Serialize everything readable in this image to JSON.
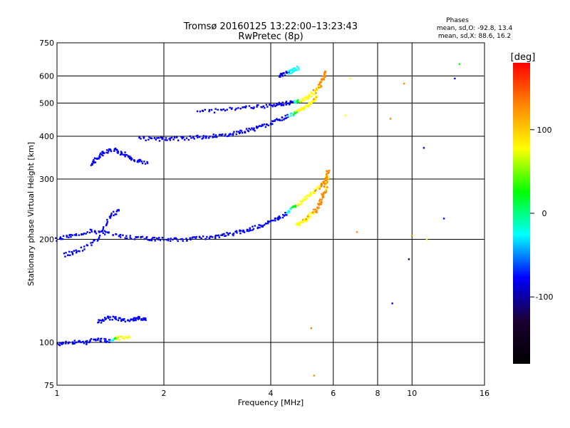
{
  "chart_data": {
    "type": "scatter",
    "title": "Tromsø 20160125 13:22:00–13:23:43",
    "subtitle": "RwPretec (8p)",
    "xlabel": "Frequency [MHz]",
    "ylabel": "Stationary phase Virtual Height [km]",
    "x_scale": "log",
    "y_scale": "log",
    "xlim": [
      1,
      16
    ],
    "ylim": [
      75,
      750
    ],
    "x_ticks": [
      1,
      2,
      4,
      6,
      8,
      10,
      16
    ],
    "y_ticks": [
      75,
      100,
      200,
      300,
      400,
      500,
      600,
      750
    ],
    "grid": true,
    "phase_info": {
      "title": "Phases",
      "line1": "mean, sd,O: -92.8, 13.4",
      "line2": "mean, sd,X:  88.6, 16.2"
    },
    "colorbar": {
      "label": "[deg]",
      "range": [
        -180,
        180
      ],
      "ticks": [
        100,
        0,
        -100
      ],
      "colors": [
        "#ff0000",
        "#ff8800",
        "#ffff00",
        "#00ff00",
        "#00ffff",
        "#0000ff",
        "#1a0033",
        "#000000"
      ]
    },
    "traces": [
      {
        "f": [
          1.0,
          1.1,
          1.25,
          1.4,
          1.6,
          1.8,
          2.0,
          2.3,
          2.6,
          2.9,
          3.2,
          3.5,
          3.8,
          4.1,
          4.4,
          4.7,
          5.0,
          5.3,
          5.6,
          5.8
        ],
        "h": [
          200,
          205,
          212,
          208,
          203,
          201,
          200,
          200,
          202,
          205,
          209,
          214,
          220,
          228,
          238,
          250,
          262,
          275,
          290,
          305
        ],
        "phase": [
          -95,
          -95,
          -92,
          -92,
          -90,
          -90,
          -92,
          -92,
          -95,
          -95,
          -95,
          -90,
          -85,
          -80,
          -60,
          40,
          95,
          100,
          110,
          100
        ]
      },
      {
        "f": [
          4.7,
          4.9,
          5.1,
          5.3,
          5.5,
          5.6,
          5.7,
          5.75,
          5.8
        ],
        "h": [
          220,
          225,
          232,
          240,
          252,
          265,
          280,
          300,
          320
        ],
        "phase": [
          95,
          100,
          100,
          105,
          110,
          110,
          100,
          105,
          110
        ]
      },
      {
        "f": [
          1.7,
          1.9,
          2.1,
          2.4,
          2.7,
          3.0,
          3.3,
          3.6,
          3.9,
          4.2,
          4.5,
          4.8,
          5.0,
          5.2,
          5.4
        ],
        "h": [
          395,
          392,
          392,
          396,
          400,
          405,
          412,
          420,
          432,
          445,
          460,
          475,
          488,
          500,
          520
        ],
        "phase": [
          -90,
          -92,
          -92,
          -90,
          -90,
          -92,
          -90,
          -88,
          -85,
          -80,
          -50,
          80,
          90,
          95,
          100
        ]
      },
      {
        "f": [
          2.5,
          3.0,
          3.5,
          4.0,
          4.3,
          4.6,
          4.9,
          5.1,
          5.3,
          5.5,
          5.6,
          5.7
        ],
        "h": [
          470,
          478,
          485,
          492,
          498,
          502,
          510,
          520,
          540,
          560,
          590,
          620
        ],
        "phase": [
          -92,
          -90,
          -90,
          -88,
          -85,
          -60,
          60,
          90,
          100,
          105,
          110,
          105
        ]
      },
      {
        "f": [
          1.25,
          1.3,
          1.35,
          1.45,
          1.55,
          1.65,
          1.8
        ],
        "h": [
          330,
          345,
          360,
          365,
          355,
          340,
          335
        ],
        "phase": [
          -90,
          -92,
          -92,
          -90,
          -88,
          -90,
          -90
        ]
      },
      {
        "f": [
          1.3,
          1.4,
          1.5,
          1.6,
          1.7,
          1.8
        ],
        "h": [
          115,
          118,
          117,
          116,
          118,
          116
        ],
        "phase": [
          -90,
          -92,
          -92,
          -90,
          -95,
          -90
        ]
      },
      {
        "f": [
          1.0,
          1.1,
          1.2,
          1.3,
          1.4,
          1.5,
          1.6
        ],
        "h": [
          99,
          100,
          100,
          102,
          101,
          103,
          104
        ],
        "phase": [
          -90,
          -92,
          -95,
          -90,
          -80,
          90,
          100
        ]
      },
      {
        "f": [
          1.05,
          1.15,
          1.3,
          1.4,
          1.5
        ],
        "h": [
          180,
          185,
          200,
          230,
          245
        ],
        "phase": [
          -90,
          -92,
          -90,
          -92,
          -90
        ]
      },
      {
        "f": [
          4.2,
          4.4,
          4.6,
          4.8
        ],
        "h": [
          600,
          610,
          620,
          635
        ],
        "phase": [
          -90,
          -70,
          -30,
          -10
        ]
      }
    ],
    "scatter_points": [
      {
        "f": 6.5,
        "h": 460,
        "phase": 80
      },
      {
        "f": 6.7,
        "h": 590,
        "phase": 100
      },
      {
        "f": 7.0,
        "h": 210,
        "phase": 150
      },
      {
        "f": 8.7,
        "h": 450,
        "phase": 120
      },
      {
        "f": 8.8,
        "h": 130,
        "phase": -100
      },
      {
        "f": 9.8,
        "h": 175,
        "phase": -110
      },
      {
        "f": 10.0,
        "h": 205,
        "phase": 150
      },
      {
        "f": 10.8,
        "h": 370,
        "phase": -95
      },
      {
        "f": 11.0,
        "h": 200,
        "phase": 100
      },
      {
        "f": 13.2,
        "h": 590,
        "phase": -90
      },
      {
        "f": 13.6,
        "h": 650,
        "phase": 10
      },
      {
        "f": 5.3,
        "h": 80,
        "phase": 140
      },
      {
        "f": 5.2,
        "h": 110,
        "phase": 120
      },
      {
        "f": 9.5,
        "h": 570,
        "phase": 110
      },
      {
        "f": 12.3,
        "h": 230,
        "phase": -90
      }
    ]
  }
}
